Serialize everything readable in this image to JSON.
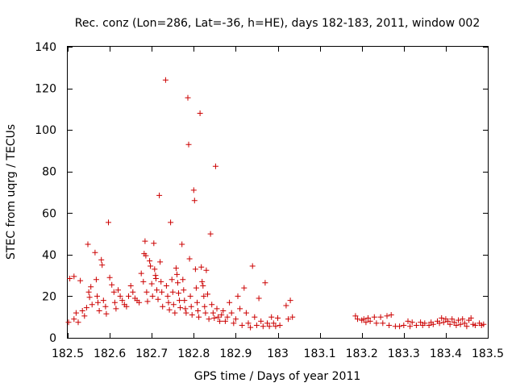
{
  "chart_data": {
    "type": "scatter",
    "title": "Rec. conz (Lon=286, Lat=-36, h=HE), days 182-183, 2011, window 002",
    "xlabel": "GPS time / Days of year 2011",
    "ylabel": "STEC from uqrg / TECUs",
    "xlim": [
      182.5,
      183.5
    ],
    "ylim": [
      0,
      140
    ],
    "xticks": [
      182.5,
      182.6,
      182.7,
      182.8,
      182.9,
      183.0,
      183.1,
      183.2,
      183.3,
      183.4,
      183.5
    ],
    "xtick_labels": [
      "182.5",
      "182.6",
      "182.7",
      "182.8",
      "182.9",
      "183",
      "183.1",
      "183.2",
      "183.3",
      "183.4",
      "183.5"
    ],
    "yticks": [
      0,
      20,
      40,
      60,
      80,
      100,
      120,
      140
    ],
    "ytick_labels": [
      "0",
      "20",
      "40",
      "60",
      "80",
      "100",
      "120",
      "140"
    ],
    "marker": "+",
    "color": "#cc0000",
    "grid": false,
    "series": [
      {
        "name": "STEC",
        "points": [
          [
            182.502,
            7.5
          ],
          [
            182.505,
            28.5
          ],
          [
            182.515,
            29.5
          ],
          [
            182.515,
            9
          ],
          [
            182.52,
            12
          ],
          [
            182.525,
            7.5
          ],
          [
            182.53,
            27.5
          ],
          [
            182.535,
            13
          ],
          [
            182.54,
            10.5
          ],
          [
            182.545,
            14.5
          ],
          [
            182.548,
            45
          ],
          [
            182.55,
            22
          ],
          [
            182.552,
            19.5
          ],
          [
            182.555,
            24.5
          ],
          [
            182.558,
            16
          ],
          [
            182.565,
            41
          ],
          [
            182.568,
            28
          ],
          [
            182.57,
            20
          ],
          [
            182.572,
            17
          ],
          [
            182.575,
            13
          ],
          [
            182.58,
            37.5
          ],
          [
            182.582,
            35
          ],
          [
            182.585,
            18
          ],
          [
            182.59,
            15
          ],
          [
            182.592,
            11.5
          ],
          [
            182.597,
            55.5
          ],
          [
            182.6,
            29
          ],
          [
            182.605,
            25.5
          ],
          [
            182.61,
            22
          ],
          [
            182.612,
            17
          ],
          [
            182.615,
            14
          ],
          [
            182.62,
            23
          ],
          [
            182.625,
            20
          ],
          [
            182.63,
            18
          ],
          [
            182.635,
            16
          ],
          [
            182.64,
            15
          ],
          [
            182.645,
            20
          ],
          [
            182.65,
            25
          ],
          [
            182.655,
            22
          ],
          [
            182.66,
            19
          ],
          [
            182.665,
            18
          ],
          [
            182.67,
            17
          ],
          [
            182.675,
            31
          ],
          [
            182.68,
            27
          ],
          [
            182.682,
            40.5
          ],
          [
            182.684,
            46.5
          ],
          [
            182.686,
            39.5
          ],
          [
            182.688,
            22
          ],
          [
            182.69,
            17.5
          ],
          [
            182.695,
            37
          ],
          [
            182.697,
            34.5
          ],
          [
            182.7,
            26
          ],
          [
            182.702,
            20
          ],
          [
            182.705,
            45.5
          ],
          [
            182.707,
            33
          ],
          [
            182.709,
            30
          ],
          [
            182.71,
            28.5
          ],
          [
            182.712,
            23
          ],
          [
            182.715,
            18.5
          ],
          [
            182.718,
            68.5
          ],
          [
            182.72,
            36.5
          ],
          [
            182.722,
            27
          ],
          [
            182.724,
            22
          ],
          [
            182.726,
            15
          ],
          [
            182.733,
            124
          ],
          [
            182.735,
            25
          ],
          [
            182.738,
            20
          ],
          [
            182.74,
            17
          ],
          [
            182.742,
            13.5
          ],
          [
            182.745,
            55.5
          ],
          [
            182.748,
            28
          ],
          [
            182.75,
            22
          ],
          [
            182.752,
            16
          ],
          [
            182.755,
            12
          ],
          [
            182.758,
            33.5
          ],
          [
            182.76,
            30.5
          ],
          [
            182.762,
            26.5
          ],
          [
            182.764,
            21.5
          ],
          [
            182.766,
            18
          ],
          [
            182.768,
            14.5
          ],
          [
            182.772,
            45
          ],
          [
            182.774,
            28
          ],
          [
            182.776,
            23
          ],
          [
            182.778,
            18
          ],
          [
            182.78,
            14
          ],
          [
            182.782,
            12
          ],
          [
            182.786,
            115.5
          ],
          [
            182.788,
            93
          ],
          [
            182.79,
            38
          ],
          [
            182.792,
            20
          ],
          [
            182.794,
            15
          ],
          [
            182.796,
            11
          ],
          [
            182.8,
            71
          ],
          [
            182.802,
            66
          ],
          [
            182.804,
            33
          ],
          [
            182.806,
            24
          ],
          [
            182.808,
            17
          ],
          [
            182.81,
            13
          ],
          [
            182.812,
            10
          ],
          [
            182.815,
            108
          ],
          [
            182.818,
            34
          ],
          [
            182.82,
            27
          ],
          [
            182.822,
            25
          ],
          [
            182.824,
            20
          ],
          [
            182.826,
            15
          ],
          [
            182.828,
            12
          ],
          [
            182.83,
            32.5
          ],
          [
            182.833,
            21
          ],
          [
            182.836,
            9
          ],
          [
            182.84,
            50
          ],
          [
            182.843,
            16
          ],
          [
            182.846,
            12
          ],
          [
            182.849,
            9.5
          ],
          [
            182.852,
            82.5
          ],
          [
            182.855,
            14
          ],
          [
            182.858,
            10
          ],
          [
            182.862,
            8
          ],
          [
            182.866,
            11
          ],
          [
            182.87,
            13
          ],
          [
            182.875,
            8
          ],
          [
            182.88,
            10
          ],
          [
            182.885,
            17
          ],
          [
            182.89,
            12
          ],
          [
            182.895,
            7
          ],
          [
            182.9,
            9
          ],
          [
            182.905,
            20
          ],
          [
            182.91,
            14
          ],
          [
            182.915,
            6
          ],
          [
            182.92,
            24
          ],
          [
            182.925,
            12
          ],
          [
            182.93,
            7
          ],
          [
            182.935,
            5
          ],
          [
            182.94,
            34.5
          ],
          [
            182.945,
            10
          ],
          [
            182.95,
            6
          ],
          [
            182.955,
            19
          ],
          [
            182.96,
            8
          ],
          [
            182.965,
            5.5
          ],
          [
            182.97,
            26.5
          ],
          [
            182.975,
            7
          ],
          [
            182.98,
            5.5
          ],
          [
            182.985,
            10
          ],
          [
            182.99,
            7
          ],
          [
            182.995,
            5.5
          ],
          [
            183.0,
            9.5
          ],
          [
            183.005,
            6
          ],
          [
            183.02,
            15.5
          ],
          [
            183.025,
            9
          ],
          [
            183.03,
            18
          ],
          [
            183.035,
            10
          ],
          [
            183.185,
            10.5
          ],
          [
            183.19,
            9
          ],
          [
            183.2,
            8.5
          ],
          [
            183.205,
            9
          ],
          [
            183.21,
            7.5
          ],
          [
            183.215,
            9.5
          ],
          [
            183.22,
            8
          ],
          [
            183.23,
            10
          ],
          [
            183.235,
            7
          ],
          [
            183.245,
            10
          ],
          [
            183.25,
            7
          ],
          [
            183.26,
            10.5
          ],
          [
            183.265,
            6
          ],
          [
            183.27,
            11
          ],
          [
            183.28,
            5.5
          ],
          [
            183.29,
            5.5
          ],
          [
            183.3,
            6
          ],
          [
            183.31,
            8
          ],
          [
            183.315,
            5.5
          ],
          [
            183.32,
            7.5
          ],
          [
            183.33,
            6
          ],
          [
            183.34,
            7.5
          ],
          [
            183.345,
            6
          ],
          [
            183.35,
            7
          ],
          [
            183.36,
            6
          ],
          [
            183.365,
            7.5
          ],
          [
            183.37,
            6.5
          ],
          [
            183.38,
            8
          ],
          [
            183.385,
            7
          ],
          [
            183.39,
            9.5
          ],
          [
            183.395,
            7.5
          ],
          [
            183.4,
            9
          ],
          [
            183.405,
            8
          ],
          [
            183.41,
            6.5
          ],
          [
            183.415,
            9
          ],
          [
            183.42,
            7.5
          ],
          [
            183.425,
            6
          ],
          [
            183.43,
            8.5
          ],
          [
            183.435,
            6.5
          ],
          [
            183.44,
            9
          ],
          [
            183.445,
            7
          ],
          [
            183.45,
            5.5
          ],
          [
            183.455,
            8.5
          ],
          [
            183.46,
            9.5
          ],
          [
            183.465,
            6.5
          ],
          [
            183.47,
            6
          ],
          [
            183.48,
            7
          ],
          [
            183.485,
            6
          ],
          [
            183.49,
            6.5
          ]
        ]
      }
    ]
  }
}
